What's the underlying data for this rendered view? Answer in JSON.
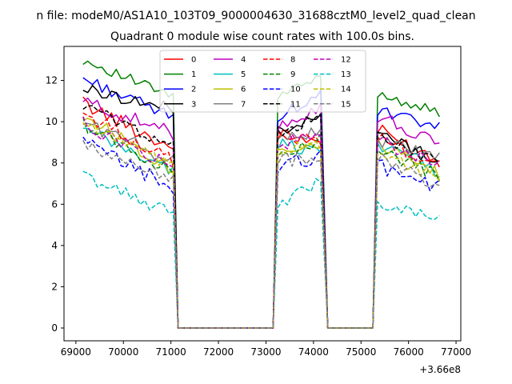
{
  "figure": {
    "suptitle": "n file: modeM0/AS1A10_103T09_9000004630_31688cztM0_level2_quad_clean"
  },
  "chart_data": {
    "type": "line",
    "title": "Quadrant 0 module wise count rates with 100.0s bins.",
    "xlabel": "",
    "ylabel": "",
    "x_offset_label": "+3.66e8",
    "xlim": [
      68750,
      77100
    ],
    "ylim": [
      -0.62,
      13.65
    ],
    "x_ticks": [
      69000,
      70000,
      71000,
      72000,
      73000,
      74000,
      75000,
      76000,
      77000
    ],
    "x_tick_labels": [
      "69000",
      "70000",
      "71000",
      "72000",
      "73000",
      "74000",
      "75000",
      "76000",
      "77000"
    ],
    "y_ticks": [
      0,
      2,
      4,
      6,
      8,
      10,
      12
    ],
    "y_tick_labels": [
      "0",
      "2",
      "4",
      "6",
      "8",
      "10",
      "12"
    ],
    "grid": false,
    "legend_position": "top",
    "legend_columns": 4,
    "segments": [
      {
        "start": 69150,
        "end": 71050
      },
      {
        "start": 73250,
        "end": 74200
      },
      {
        "start": 75350,
        "end": 76650
      }
    ],
    "gaps": [
      {
        "from": 71050,
        "edge1": 71150,
        "edge2": 73150,
        "to": 73250
      },
      {
        "from": 74200,
        "edge1": 74300,
        "edge2": 75250,
        "to": 75350
      }
    ],
    "series": [
      {
        "name": "0",
        "color": "#ff0000",
        "dashed": false,
        "levels": [
          10.9,
          9.4,
          9.6
        ],
        "trends": [
          -2.2,
          -0.4,
          -1.5
        ],
        "noise": 0.35
      },
      {
        "name": "1",
        "color": "#008000",
        "dashed": false,
        "levels": [
          13.0,
          11.2,
          11.4
        ],
        "trends": [
          -1.8,
          1.0,
          -1.0
        ],
        "noise": 0.25
      },
      {
        "name": "2",
        "color": "#0000ff",
        "dashed": false,
        "levels": [
          12.1,
          10.3,
          10.5
        ],
        "trends": [
          -1.9,
          1.0,
          -0.8
        ],
        "noise": 0.3
      },
      {
        "name": "3",
        "color": "#000000",
        "dashed": false,
        "levels": [
          11.6,
          9.6,
          9.5
        ],
        "trends": [
          -1.0,
          0.6,
          -1.4
        ],
        "noise": 0.3
      },
      {
        "name": "4",
        "color": "#bf00bf",
        "dashed": false,
        "levels": [
          11.0,
          9.9,
          10.3
        ],
        "trends": [
          -1.6,
          0.8,
          -1.5
        ],
        "noise": 0.35
      },
      {
        "name": "5",
        "color": "#00bfbf",
        "dashed": false,
        "levels": [
          9.6,
          8.9,
          9.0
        ],
        "trends": [
          -2.0,
          -0.3,
          -1.4
        ],
        "noise": 0.35
      },
      {
        "name": "6",
        "color": "#bfbf00",
        "dashed": false,
        "levels": [
          10.3,
          8.7,
          8.9
        ],
        "trends": [
          -2.6,
          0.3,
          -1.5
        ],
        "noise": 0.35
      },
      {
        "name": "7",
        "color": "#808080",
        "dashed": false,
        "levels": [
          10.0,
          9.3,
          9.1
        ],
        "trends": [
          -1.9,
          0.2,
          -0.9
        ],
        "noise": 0.35
      },
      {
        "name": "8",
        "color": "#ff0000",
        "dashed": true,
        "levels": [
          10.4,
          9.2,
          9.2
        ],
        "trends": [
          -2.3,
          0.0,
          -1.4
        ],
        "noise": 0.35
      },
      {
        "name": "9",
        "color": "#008000",
        "dashed": true,
        "levels": [
          9.9,
          8.6,
          8.7
        ],
        "trends": [
          -2.4,
          0.5,
          -1.4
        ],
        "noise": 0.35
      },
      {
        "name": "10",
        "color": "#0000ff",
        "dashed": true,
        "levels": [
          9.0,
          7.7,
          7.9
        ],
        "trends": [
          -2.2,
          0.8,
          -1.1
        ],
        "noise": 0.4
      },
      {
        "name": "11",
        "color": "#000000",
        "dashed": true,
        "levels": [
          10.8,
          9.5,
          9.3
        ],
        "trends": [
          -2.0,
          0.7,
          -1.3
        ],
        "noise": 0.3
      },
      {
        "name": "12",
        "color": "#bf00bf",
        "dashed": true,
        "levels": [
          9.9,
          8.9,
          9.1
        ],
        "trends": [
          -2.1,
          0.5,
          -1.3
        ],
        "noise": 0.35
      },
      {
        "name": "13",
        "color": "#00bfbf",
        "dashed": true,
        "levels": [
          7.4,
          6.0,
          6.1
        ],
        "trends": [
          -1.9,
          1.2,
          -0.8
        ],
        "noise": 0.3
      },
      {
        "name": "14",
        "color": "#bfbf00",
        "dashed": true,
        "levels": [
          10.0,
          8.6,
          8.6
        ],
        "trends": [
          -2.3,
          0.4,
          -1.4
        ],
        "noise": 0.35
      },
      {
        "name": "15",
        "color": "#808080",
        "dashed": true,
        "levels": [
          8.8,
          8.1,
          8.2
        ],
        "trends": [
          -1.5,
          0.2,
          -1.3
        ],
        "noise": 0.35
      }
    ]
  }
}
